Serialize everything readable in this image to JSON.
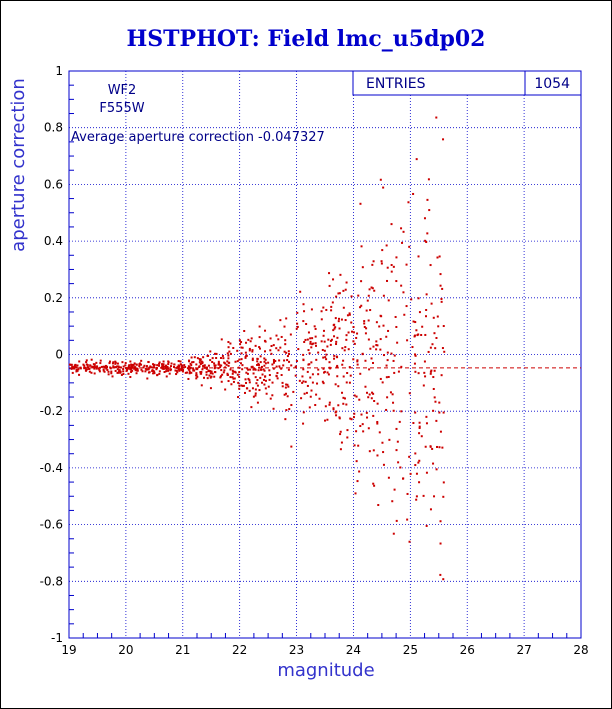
{
  "chart_data": {
    "type": "scatter",
    "title": "HSTPHOT: Field lmc_u5dp02",
    "xlabel": "magnitude",
    "ylabel": "aperture correction",
    "xlim": [
      19,
      28
    ],
    "ylim": [
      -1,
      1
    ],
    "x_ticks": [
      "19",
      "20",
      "21",
      "22",
      "23",
      "24",
      "25",
      "26",
      "27",
      "28"
    ],
    "y_ticks": [
      "-1",
      "-0.8",
      "-0.6",
      "-0.4",
      "-0.2",
      "0",
      "0.2",
      "0.4",
      "0.6",
      "0.8",
      "1"
    ],
    "grid": true,
    "annotations": {
      "camera": "WF2",
      "filter": "F555W",
      "average_text": "Average aperture correction -0.047327"
    },
    "stats": {
      "label": "ENTRIES",
      "value": "1054"
    },
    "reference_line": -0.047327,
    "points_shown_approx": 1054,
    "colors": {
      "points": "#cc0000",
      "grid": "#0000cc",
      "reference": "#cc0000",
      "title": "#0000cc"
    }
  }
}
